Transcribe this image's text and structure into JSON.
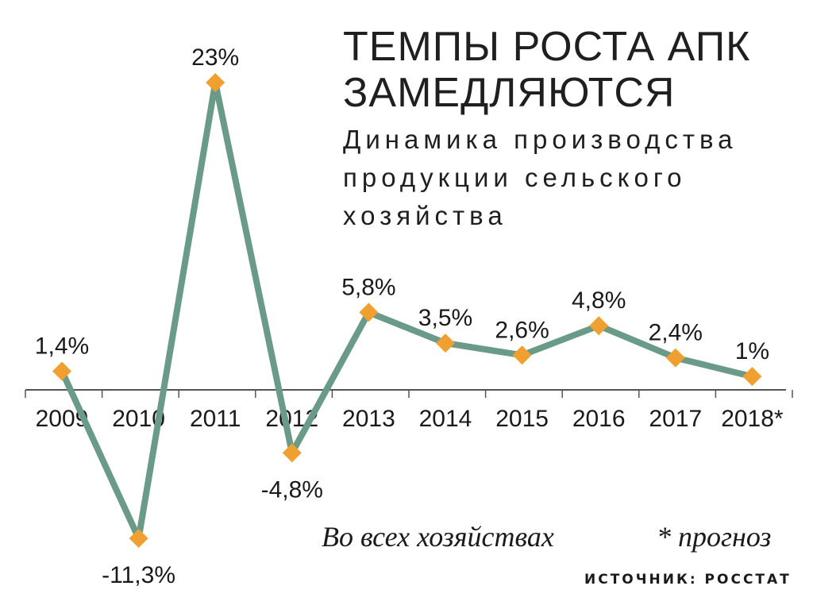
{
  "title_lines": [
    "ТЕМПЫ РОСТА АПК",
    "ЗАМЕДЛЯЮТСЯ"
  ],
  "subtitle_lines": [
    "Динамика производства",
    "продукции сельского",
    "хозяйства"
  ],
  "notes": {
    "left": "Во всех хозяйствах",
    "right": "* прогноз"
  },
  "source": "ИСТОЧНИК: РОССТАТ",
  "colors": {
    "line": "#6a9a88",
    "marker": "#f0a030",
    "axis": "#555555",
    "text": "#1a1a1a"
  },
  "chart_data": {
    "type": "line",
    "title": "ТЕМПЫ РОСТА АПК ЗАМЕДЛЯЮТСЯ",
    "subtitle": "Динамика производства продукции сельского хозяйства",
    "categories": [
      "2009",
      "2010",
      "2011",
      "2012",
      "2013",
      "2014",
      "2015",
      "2016",
      "2017",
      "2018*"
    ],
    "series": [
      {
        "values": [
          1.4,
          -11.3,
          23,
          -4.8,
          5.8,
          3.5,
          2.6,
          4.8,
          2.4,
          1
        ],
        "labels": [
          "1,4%",
          "-11,3%",
          "23%",
          "-4,8%",
          "5,8%",
          "3,5%",
          "2,6%",
          "4,8%",
          "2,4%",
          "1%"
        ]
      }
    ],
    "ylim": [
      -11.3,
      23
    ],
    "xlabel": "",
    "ylabel": "",
    "grid": false,
    "legend": "none"
  }
}
